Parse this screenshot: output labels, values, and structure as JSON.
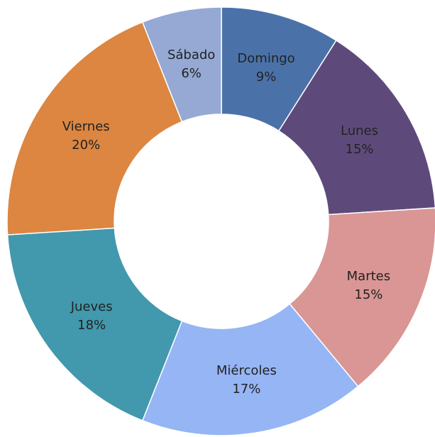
{
  "chart_data": {
    "type": "donut",
    "categories": [
      "Domingo",
      "Lunes",
      "Martes",
      "Miércoles",
      "Jueves",
      "Viernes",
      "Sábado"
    ],
    "values": [
      9,
      15,
      15,
      17,
      18,
      20,
      6
    ],
    "value_labels": [
      "9%",
      "15%",
      "15%",
      "17%",
      "18%",
      "20%",
      "6%"
    ],
    "colors": [
      "#4a72a8",
      "#5e4a7a",
      "#d99694",
      "#95b5f5",
      "#4298ac",
      "#dc8641",
      "#95a9d4"
    ]
  }
}
